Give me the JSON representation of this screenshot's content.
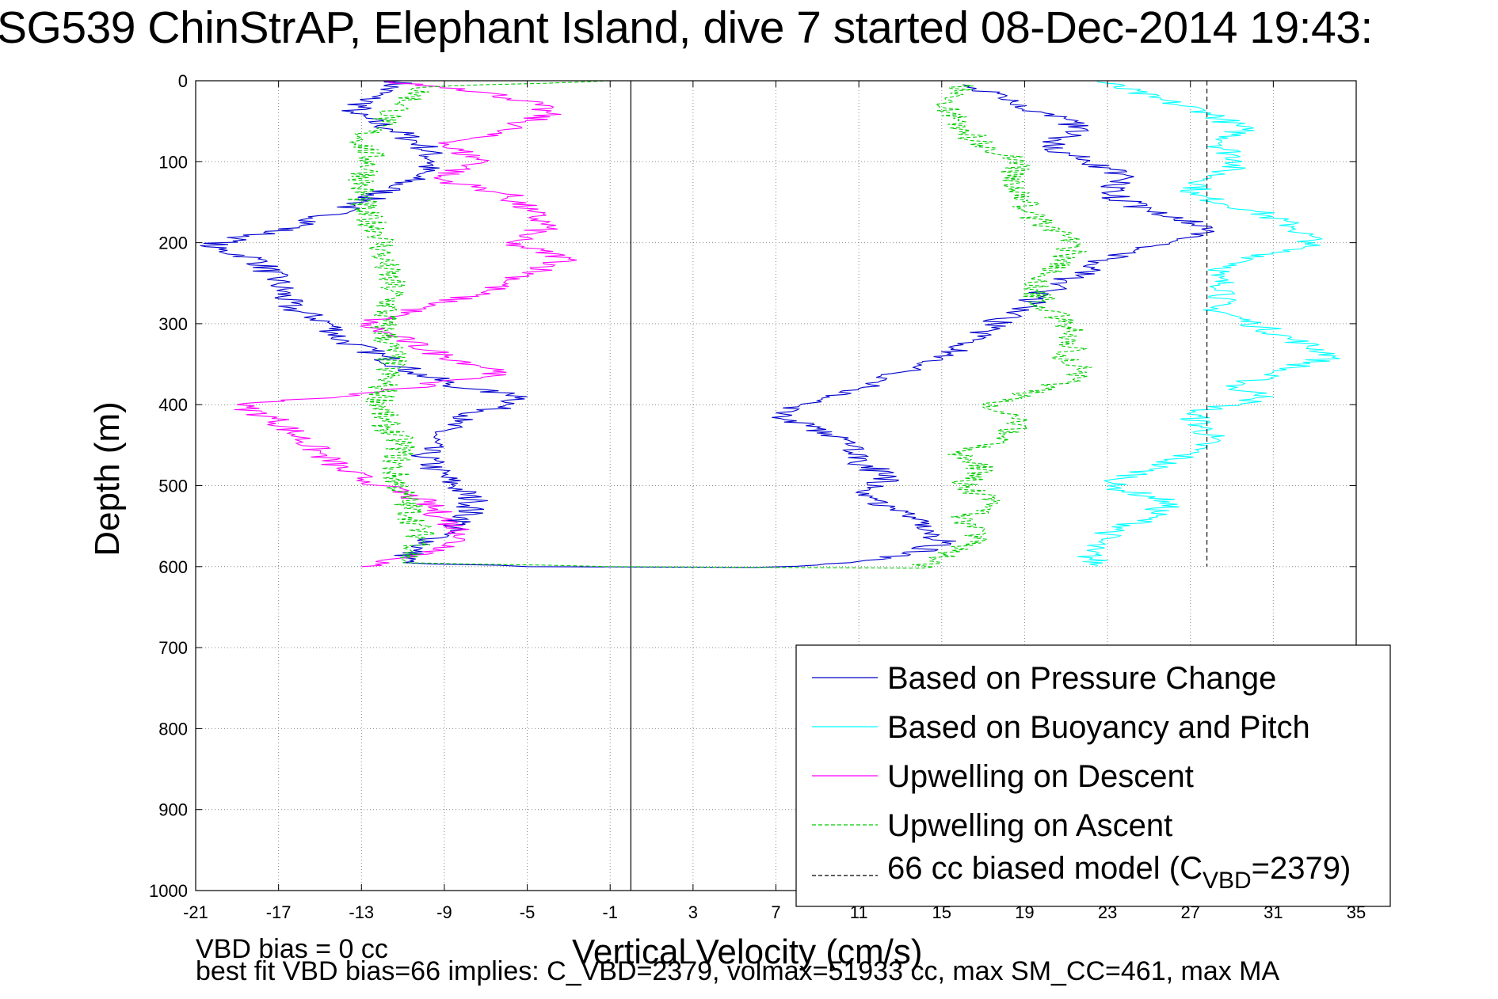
{
  "chart_data": {
    "type": "line",
    "title": "SG539 ChinStrAP, Elephant Island, dive 7 started 08-Dec-2014 19:43:",
    "xlabel": "Vertical Velocity (cm/s)",
    "ylabel": "Depth (m)",
    "xlim": [
      -21,
      35
    ],
    "ylim": [
      0,
      1000
    ],
    "y_reversed": true,
    "grid": true,
    "xticks": [
      -21,
      -17,
      -13,
      -9,
      -5,
      -1,
      3,
      7,
      11,
      15,
      19,
      23,
      27,
      31,
      35
    ],
    "yticks": [
      0,
      100,
      200,
      300,
      400,
      500,
      600,
      700,
      800,
      900,
      1000
    ],
    "legend_position": "bottom-right",
    "series": [
      {
        "name": "Based on Pressure Change",
        "color": "#0000cc",
        "style": "solid",
        "points": [
          [
            -11,
            0
          ],
          [
            -12.5,
            20
          ],
          [
            -13.5,
            40
          ],
          [
            -11.5,
            60
          ],
          [
            -10,
            80
          ],
          [
            -9.5,
            100
          ],
          [
            -10.5,
            120
          ],
          [
            -13,
            150
          ],
          [
            -16,
            180
          ],
          [
            -19,
            195
          ],
          [
            -20.5,
            205
          ],
          [
            -18,
            220
          ],
          [
            -17,
            250
          ],
          [
            -16.5,
            280
          ],
          [
            -14.5,
            300
          ],
          [
            -14,
            320
          ],
          [
            -12,
            340
          ],
          [
            -10.5,
            360
          ],
          [
            -8,
            380
          ],
          [
            -5,
            390
          ],
          [
            -6,
            400
          ],
          [
            -8.5,
            420
          ],
          [
            -9.5,
            440
          ],
          [
            -10,
            460
          ],
          [
            -9.5,
            480
          ],
          [
            -8.5,
            500
          ],
          [
            -7.5,
            520
          ],
          [
            -8,
            540
          ],
          [
            -9,
            560
          ],
          [
            -10.5,
            580
          ],
          [
            -11,
            595
          ],
          [
            -5,
            600
          ],
          [
            6,
            601
          ],
          [
            9,
            598
          ],
          [
            13.5,
            585
          ],
          [
            15,
            570
          ],
          [
            14.5,
            550
          ],
          [
            12.5,
            530
          ],
          [
            11.5,
            510
          ],
          [
            12.5,
            490
          ],
          [
            11,
            470
          ],
          [
            10.5,
            450
          ],
          [
            8,
            420
          ],
          [
            7,
            410
          ],
          [
            9,
            395
          ],
          [
            11,
            380
          ],
          [
            13,
            360
          ],
          [
            15,
            345
          ],
          [
            16.5,
            320
          ],
          [
            17.5,
            300
          ],
          [
            19,
            280
          ],
          [
            20,
            260
          ],
          [
            21.5,
            240
          ],
          [
            23,
            220
          ],
          [
            26,
            200
          ],
          [
            28,
            180
          ],
          [
            25,
            160
          ],
          [
            23,
            140
          ],
          [
            24,
            120
          ],
          [
            22,
            100
          ],
          [
            20,
            80
          ],
          [
            22,
            60
          ],
          [
            20,
            40
          ],
          [
            18,
            20
          ],
          [
            16,
            5
          ]
        ]
      },
      {
        "name": "Based on Buoyancy and Pitch",
        "color": "#00ffff",
        "style": "solid",
        "points": [
          [
            22.5,
            0
          ],
          [
            25,
            20
          ],
          [
            28,
            40
          ],
          [
            29.5,
            60
          ],
          [
            28.5,
            80
          ],
          [
            29.5,
            100
          ],
          [
            28,
            120
          ],
          [
            27,
            140
          ],
          [
            30,
            160
          ],
          [
            32,
            180
          ],
          [
            33,
            200
          ],
          [
            30,
            220
          ],
          [
            28,
            240
          ],
          [
            29,
            260
          ],
          [
            28,
            280
          ],
          [
            30,
            300
          ],
          [
            32,
            320
          ],
          [
            34,
            340
          ],
          [
            31,
            360
          ],
          [
            29,
            380
          ],
          [
            31,
            390
          ],
          [
            27,
            410
          ],
          [
            28,
            440
          ],
          [
            27,
            460
          ],
          [
            25,
            480
          ],
          [
            23,
            500
          ],
          [
            26,
            520
          ],
          [
            25,
            540
          ],
          [
            23,
            560
          ],
          [
            22,
            580
          ],
          [
            22.5,
            600
          ]
        ]
      },
      {
        "name": "Upwelling on Descent",
        "color": "#ff00ff",
        "style": "solid",
        "points": [
          [
            -12,
            0
          ],
          [
            -8,
            10
          ],
          [
            -5,
            25
          ],
          [
            -4,
            40
          ],
          [
            -6,
            60
          ],
          [
            -9,
            80
          ],
          [
            -7,
            100
          ],
          [
            -9.5,
            120
          ],
          [
            -6,
            140
          ],
          [
            -5,
            160
          ],
          [
            -4,
            180
          ],
          [
            -6,
            200
          ],
          [
            -3,
            220
          ],
          [
            -5,
            240
          ],
          [
            -7,
            260
          ],
          [
            -10,
            280
          ],
          [
            -13,
            300
          ],
          [
            -11,
            320
          ],
          [
            -9,
            340
          ],
          [
            -6,
            360
          ],
          [
            -11,
            380
          ],
          [
            -14,
            390
          ],
          [
            -19,
            400
          ],
          [
            -17,
            420
          ],
          [
            -16,
            440
          ],
          [
            -15,
            460
          ],
          [
            -14,
            480
          ],
          [
            -12,
            500
          ],
          [
            -10,
            520
          ],
          [
            -9,
            540
          ],
          [
            -8,
            560
          ],
          [
            -9,
            580
          ],
          [
            -13,
            600
          ]
        ]
      },
      {
        "name": "Upwelling on Ascent",
        "color": "#00cc00",
        "style": "dashed",
        "points": [
          [
            -1,
            0
          ],
          [
            -10,
            8
          ],
          [
            -11,
            30
          ],
          [
            -12,
            50
          ],
          [
            -13,
            70
          ],
          [
            -12.5,
            100
          ],
          [
            -13,
            130
          ],
          [
            -13,
            160
          ],
          [
            -12,
            190
          ],
          [
            -12,
            220
          ],
          [
            -11.5,
            260
          ],
          [
            -12,
            300
          ],
          [
            -11.5,
            340
          ],
          [
            -12,
            380
          ],
          [
            -12,
            420
          ],
          [
            -11,
            450
          ],
          [
            -11.5,
            480
          ],
          [
            -11,
            510
          ],
          [
            -10.5,
            540
          ],
          [
            -10,
            570
          ],
          [
            -11,
            595
          ],
          [
            -1,
            600
          ],
          [
            14,
            602
          ],
          [
            15.5,
            580
          ],
          [
            17,
            560
          ],
          [
            16,
            540
          ],
          [
            17.5,
            520
          ],
          [
            16,
            500
          ],
          [
            17,
            480
          ],
          [
            16,
            460
          ],
          [
            18,
            440
          ],
          [
            19,
            420
          ],
          [
            17,
            400
          ],
          [
            20,
            380
          ],
          [
            22,
            360
          ],
          [
            21,
            340
          ],
          [
            21.5,
            320
          ],
          [
            21,
            300
          ],
          [
            20,
            280
          ],
          [
            19.5,
            260
          ],
          [
            20,
            240
          ],
          [
            21,
            220
          ],
          [
            21.5,
            200
          ],
          [
            20,
            180
          ],
          [
            19,
            160
          ],
          [
            19,
            140
          ],
          [
            18,
            120
          ],
          [
            19,
            100
          ],
          [
            17,
            80
          ],
          [
            16,
            60
          ],
          [
            15.5,
            40
          ],
          [
            15.5,
            20
          ],
          [
            16,
            5
          ]
        ]
      },
      {
        "name": "66 cc biased model (C_VBD=2379)",
        "color": "#000000",
        "style": "dashed",
        "points": [
          [
            27.8,
            0
          ],
          [
            27.8,
            600
          ]
        ]
      }
    ],
    "vertical_reference_line": 0
  },
  "legend": {
    "entries": [
      {
        "label": "Based on Pressure Change",
        "color": "#0000cc",
        "style": "solid"
      },
      {
        "label": "Based on Buoyancy and Pitch",
        "color": "#00ffff",
        "style": "solid"
      },
      {
        "label": "Upwelling on Descent",
        "color": "#ff00ff",
        "style": "solid"
      },
      {
        "label": "Upwelling on Ascent",
        "color": "#00cc00",
        "style": "dashed"
      }
    ],
    "model_label_prefix": "66 cc biased model (C",
    "model_label_sub": "VBD",
    "model_label_suffix": "=2379)"
  },
  "footer": {
    "line1": "VBD bias = 0 cc",
    "line2": "best fit VBD bias=66 implies: C_VBD=2379, volmax=51933 cc, max SM_CC=461, max MA"
  }
}
